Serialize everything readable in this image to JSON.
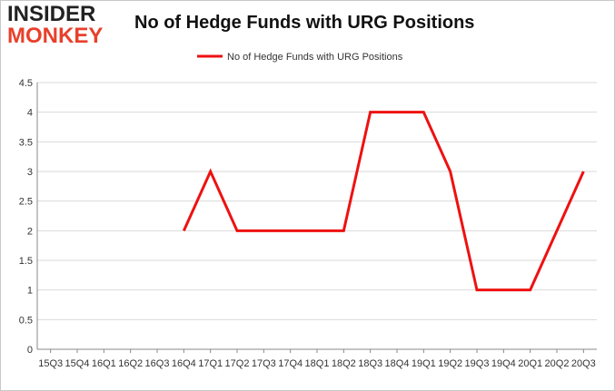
{
  "logo": {
    "line1": "INSIDER",
    "line2": "MONKEY"
  },
  "colors": {
    "series": "#ee1111",
    "grid": "#d9d9d9",
    "axis": "#888888",
    "logo_accent": "#e8402b"
  },
  "chart_data": {
    "type": "line",
    "title": "No of Hedge Funds with URG Positions",
    "xlabel": "",
    "ylabel": "",
    "ylim": [
      0,
      4.5
    ],
    "yticks": [
      "0",
      "0.5",
      "1",
      "1.5",
      "2",
      "2.5",
      "3",
      "3.5",
      "4",
      "4.5"
    ],
    "grid": true,
    "legend_position": "top",
    "categories": [
      "15Q3",
      "15Q4",
      "16Q1",
      "16Q2",
      "16Q3",
      "16Q4",
      "17Q1",
      "17Q2",
      "17Q3",
      "17Q4",
      "18Q1",
      "18Q2",
      "18Q3",
      "18Q4",
      "19Q1",
      "19Q2",
      "19Q3",
      "19Q4",
      "20Q1",
      "20Q2",
      "20Q3"
    ],
    "series": [
      {
        "name": "No of Hedge Funds with URG Positions",
        "values": [
          null,
          null,
          null,
          null,
          null,
          2,
          3,
          2,
          2,
          2,
          2,
          2,
          4,
          4,
          4,
          3,
          1,
          1,
          1,
          2,
          3
        ]
      }
    ]
  }
}
